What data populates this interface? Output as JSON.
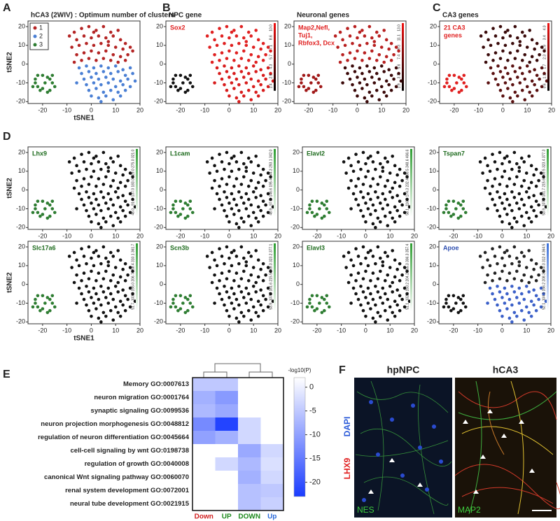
{
  "panel_letters": [
    "A",
    "B",
    "C",
    "D",
    "E",
    "F"
  ],
  "tsne": {
    "xlabel": "tSNE1",
    "ylabel": "tSNE2",
    "xlim": [
      -26,
      20
    ],
    "ylim": [
      -21,
      23
    ],
    "xticks": [
      -20,
      -10,
      0,
      10,
      20
    ],
    "yticks": [
      -20,
      -10,
      0,
      10,
      20
    ],
    "x": [
      -23,
      -22,
      -20,
      -18,
      -17,
      -16,
      -15,
      -17,
      -22,
      -24,
      -21,
      -19,
      -23,
      -16,
      -18,
      -20,
      -7,
      -4,
      -1,
      2,
      5,
      8,
      11,
      -6,
      -3,
      0,
      3,
      6,
      9,
      12,
      14,
      -8,
      -5,
      -2,
      1,
      4,
      7,
      10,
      13,
      16,
      -6,
      -3,
      0,
      3,
      6,
      9,
      12,
      15,
      -4,
      -1,
      2,
      5,
      8,
      11,
      14,
      -7,
      17,
      -9,
      1,
      7,
      -5,
      -2,
      1,
      4,
      7,
      10,
      13,
      16,
      -4,
      -1,
      2,
      5,
      8,
      11,
      14,
      17,
      -3,
      0,
      3,
      6,
      9,
      12,
      15,
      -2,
      1,
      4,
      7,
      10,
      13,
      16,
      -1,
      2,
      5,
      8,
      11,
      14,
      0,
      3,
      6,
      9,
      12,
      4,
      18,
      -6
    ],
    "y": [
      -8,
      -6,
      -6,
      -7,
      -8,
      -10,
      -12,
      -14,
      -12,
      -12,
      -14,
      -10,
      -10,
      -6,
      -15,
      -13,
      17,
      19,
      20,
      18,
      20,
      17,
      18,
      13,
      15,
      14,
      15,
      14,
      15,
      13,
      11,
      9,
      10,
      11,
      10,
      11,
      10,
      9,
      8,
      9,
      5,
      6,
      7,
      6,
      7,
      5,
      4,
      5,
      2,
      3,
      2,
      3,
      2,
      1,
      2,
      1,
      7,
      15,
      17,
      12,
      -2,
      -1,
      -2,
      -1,
      -2,
      -1,
      -3,
      -2,
      -5,
      -4,
      -5,
      -4,
      -5,
      -4,
      -6,
      -5,
      -8,
      -7,
      -8,
      -7,
      -8,
      -9,
      -8,
      -11,
      -10,
      -11,
      -10,
      -12,
      -11,
      -12,
      -14,
      -13,
      -15,
      -14,
      -15,
      -14,
      -17,
      -18,
      -17,
      -19,
      -17,
      -20,
      -9,
      -10
    ],
    "cluster": [
      3,
      3,
      3,
      3,
      3,
      3,
      3,
      3,
      3,
      3,
      3,
      3,
      3,
      3,
      3,
      3,
      1,
      1,
      1,
      1,
      1,
      1,
      1,
      1,
      1,
      1,
      1,
      1,
      1,
      1,
      1,
      1,
      1,
      1,
      1,
      1,
      1,
      1,
      1,
      1,
      1,
      1,
      1,
      1,
      1,
      1,
      1,
      1,
      1,
      1,
      1,
      1,
      1,
      1,
      1,
      1,
      1,
      1,
      1,
      1,
      2,
      2,
      2,
      2,
      2,
      2,
      2,
      2,
      2,
      2,
      2,
      2,
      2,
      2,
      2,
      2,
      2,
      2,
      2,
      2,
      2,
      2,
      2,
      2,
      2,
      2,
      2,
      2,
      2,
      2,
      2,
      2,
      2,
      2,
      2,
      2,
      2,
      2,
      2,
      2,
      2,
      2,
      2,
      2
    ]
  },
  "chart_data": [
    {
      "type": "scatter",
      "title": "hCA3 (2WIV) : Optimum number of clusters",
      "cluster_colors": [
        "#b42424",
        "#4a7fd4",
        "#2e7d32"
      ],
      "legend": {
        "labels": [
          "1",
          "2",
          "3"
        ],
        "position": "upper left"
      }
    },
    {
      "type": "scatter",
      "title": "NPC gene",
      "label_lines": [
        "Sox2"
      ],
      "label_color": "#e02020",
      "cluster_colors": [
        "#e02020",
        "#d81c1c",
        "#111111"
      ],
      "colorbar": [
        "#000000",
        "#ee1111"
      ],
      "colorbar_labels": [
        "1.4",
        "2.9",
        "4.3",
        "5.7",
        "7.1",
        "8.6",
        "10.0"
      ]
    },
    {
      "type": "scatter",
      "title": "Neuronal genes",
      "label_lines": [
        "Map2,Nefl,",
        "Tuj1,",
        "Rbfox3, Dcx"
      ],
      "label_color": "#e02020",
      "cluster_colors": [
        "#b82020",
        "#3a0808",
        "#a01818"
      ],
      "colorbar": [
        "#000000",
        "#ee1111"
      ],
      "colorbar_labels": [
        "1.9",
        "3.7",
        "5.6",
        "7.4",
        "9.3",
        "11.1",
        "13.0"
      ]
    },
    {
      "type": "scatter",
      "title": "CA3 genes",
      "label_lines": [
        "21 CA3",
        "genes"
      ],
      "label_color": "#e02020",
      "cluster_colors": [
        "#3a0a0a",
        "#5a1010",
        "#e02020"
      ],
      "colorbar": [
        "#000000",
        "#ee1111"
      ],
      "colorbar_labels": [
        "0.6",
        "1.1",
        "1.7",
        "2.3",
        "2.9",
        "3.4",
        "4.0"
      ]
    },
    {
      "type": "scatter",
      "label_lines": [
        "Lhx9"
      ],
      "label_color": "#1e6b1e",
      "cluster_colors": [
        "#111111",
        "#111111",
        "#2e7d32"
      ],
      "colorbar": [
        "#ffffff",
        "#2e9d32"
      ],
      "colorbar_labels": [
        "46.0",
        "91.0",
        "137.0",
        "183.0",
        "229.0",
        "275.0",
        "321.0"
      ]
    },
    {
      "type": "scatter",
      "label_lines": [
        "L1cam"
      ],
      "label_color": "#1e6b1e",
      "cluster_colors": [
        "#111111",
        "#111111",
        "#2e7d32"
      ],
      "colorbar": [
        "#ffffff",
        "#2e9d32"
      ],
      "colorbar_labels": [
        "48.9",
        "97.7",
        "146.6",
        "195.4",
        "244.3",
        "293.1",
        "342.0"
      ]
    },
    {
      "type": "scatter",
      "label_lines": [
        "Elavl2"
      ],
      "label_color": "#1e6b1e",
      "cluster_colors": [
        "#111111",
        "#111111",
        "#2e7d32"
      ],
      "colorbar": [
        "#ffffff",
        "#2e9d32"
      ],
      "colorbar_labels": [
        "58.1",
        "116.2",
        "174.3",
        "232.4",
        "290.5",
        "348.6",
        "406.6"
      ]
    },
    {
      "type": "scatter",
      "label_lines": [
        "Tspan7"
      ],
      "label_color": "#1e6b1e",
      "cluster_colors": [
        "#111111",
        "#111111",
        "#2e7d32"
      ],
      "colorbar": [
        "#ffffff",
        "#2e9d32"
      ],
      "colorbar_labels": [
        "53.9",
        "107.8",
        "161.7",
        "215.6",
        "269.5",
        "323.4",
        "377.3"
      ]
    },
    {
      "type": "scatter",
      "label_lines": [
        "Slc17a6"
      ],
      "label_color": "#1e6b1e",
      "cluster_colors": [
        "#111111",
        "#111111",
        "#2e7d32"
      ],
      "colorbar": [
        "#ffffff",
        "#2e9d32"
      ],
      "colorbar_labels": [
        "51.7",
        "103.4",
        "155.0",
        "206.7",
        "258.4",
        "310.1",
        "361.7"
      ]
    },
    {
      "type": "scatter",
      "label_lines": [
        "Scn3b"
      ],
      "label_color": "#1e6b1e",
      "cluster_colors": [
        "#111111",
        "#111111",
        "#2e7d32"
      ],
      "colorbar": [
        "#ffffff",
        "#2e9d32"
      ],
      "colorbar_labels": [
        "53.9",
        "107.7",
        "161.6",
        "215.5",
        "269.3",
        "323.2",
        "377.1"
      ]
    },
    {
      "type": "scatter",
      "label_lines": [
        "Elavl3"
      ],
      "label_color": "#1e6b1e",
      "cluster_colors": [
        "#111111",
        "#111111",
        "#2e7d32"
      ],
      "colorbar": [
        "#ffffff",
        "#2e9d32"
      ],
      "colorbar_labels": [
        "51.1",
        "102.1",
        "153.2",
        "204.2",
        "255.3",
        "306.3",
        "357.4"
      ]
    },
    {
      "type": "scatter",
      "label_lines": [
        "Apoe"
      ],
      "label_color": "#3050b0",
      "cluster_colors": [
        "#222222",
        "#3a5fc8",
        "#111111"
      ],
      "colorbar": [
        "#ffffff",
        "#3a6fd8"
      ],
      "colorbar_labels": [
        "52.1",
        "104.1",
        "156.2",
        "208.3",
        "260.3",
        "312.4",
        "364.5"
      ]
    },
    {
      "type": "heatmap",
      "rows": [
        "Memory GO:0007613",
        "neuron migration GO:0001764",
        "synaptic signaling GO:0099536",
        "neuron projection morphogenesis GO:0048812",
        "regulation of neuron differentiation GO:0045664",
        "cell-cell signaling by wnt GO:0198738",
        "regulation of growth GO:0040008",
        "canonical Wnt signaling pathway GO:0060070",
        "renal system development GO:0072001",
        "neural tube development GO:0021915"
      ],
      "columns": [
        "Down",
        "UP",
        "DOWN",
        "Up"
      ],
      "column_colors": [
        "#d02020",
        "#1e8a1e",
        "#1e8a1e",
        "#2a6ad8"
      ],
      "values": [
        [
          -5,
          -5,
          null,
          null
        ],
        [
          -8,
          -11,
          null,
          null
        ],
        [
          -7,
          -9,
          null,
          null
        ],
        [
          -13,
          -22,
          -3,
          null
        ],
        [
          -10,
          -8,
          -3,
          null
        ],
        [
          null,
          null,
          -9,
          -3
        ],
        [
          null,
          -3,
          -7,
          -2
        ],
        [
          null,
          null,
          -8,
          -3
        ],
        [
          null,
          null,
          -6,
          -5
        ],
        [
          null,
          null,
          -6,
          -4
        ]
      ],
      "clim": [
        -23,
        2
      ],
      "colors": [
        "#ffffff",
        "#1a3cff"
      ],
      "colorbar_title": "-log10(P)",
      "colorbar_ticks": [
        0,
        -5,
        -10,
        -15,
        -20
      ]
    }
  ],
  "figure_f": {
    "columns": [
      "hpNPC",
      "hCA3"
    ],
    "stain_red": "LHX9",
    "stain_blue": "DAPI",
    "markers": [
      "NES",
      "MAP2"
    ]
  }
}
